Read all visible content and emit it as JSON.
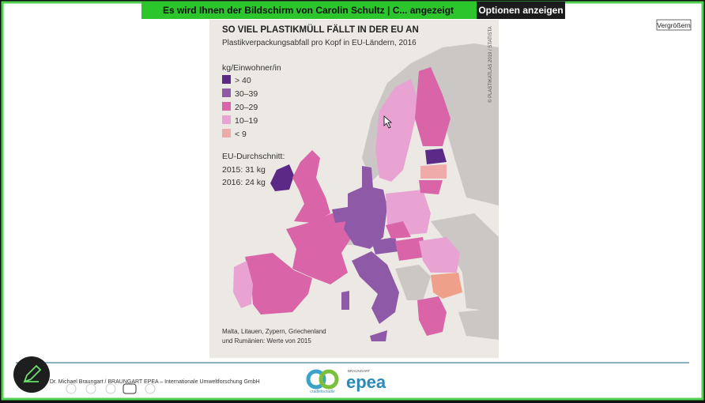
{
  "banner": {
    "text": "Es wird Ihnen der Bildschirm von  Carolin Schultz | C... angezeigt",
    "options": "Optionen anzeigen"
  },
  "zoom_button": "Vergrößern",
  "slide": {
    "title": "SO VIEL PLASTIKMÜLL FÄLLT IN DER EU AN",
    "subtitle": "Plastikverpackungsabfall pro Kopf in EU-Ländern, 2016",
    "credit": "© PLASTIKATLAS 2019 / STATISTA",
    "legend": {
      "title": "kg/Einwohner/in",
      "items": [
        {
          "label": "> 40",
          "color": "#5b2a86"
        },
        {
          "label": "30–39",
          "color": "#8e5aa8"
        },
        {
          "label": "20–29",
          "color": "#d965a8"
        },
        {
          "label": "10–19",
          "color": "#e8a3d3"
        },
        {
          "label": "< 9",
          "color": "#eeabaa"
        }
      ]
    },
    "average": {
      "title": "EU-Durchschnitt:",
      "lines": [
        "2015: 31 kg",
        "2016: 24 kg"
      ]
    },
    "note": [
      "Malta, Litauen, Zypern, Griechenland",
      "und Rumänien: Werte von 2015"
    ],
    "footer": "f. Dr. Michael Braungart / BRAUNGART EPEA – Internationale Umweltforschung GmbH",
    "logos": {
      "c2c": "cradletocradle",
      "braungart": "BRAUNGART",
      "epea": "epea"
    }
  }
}
